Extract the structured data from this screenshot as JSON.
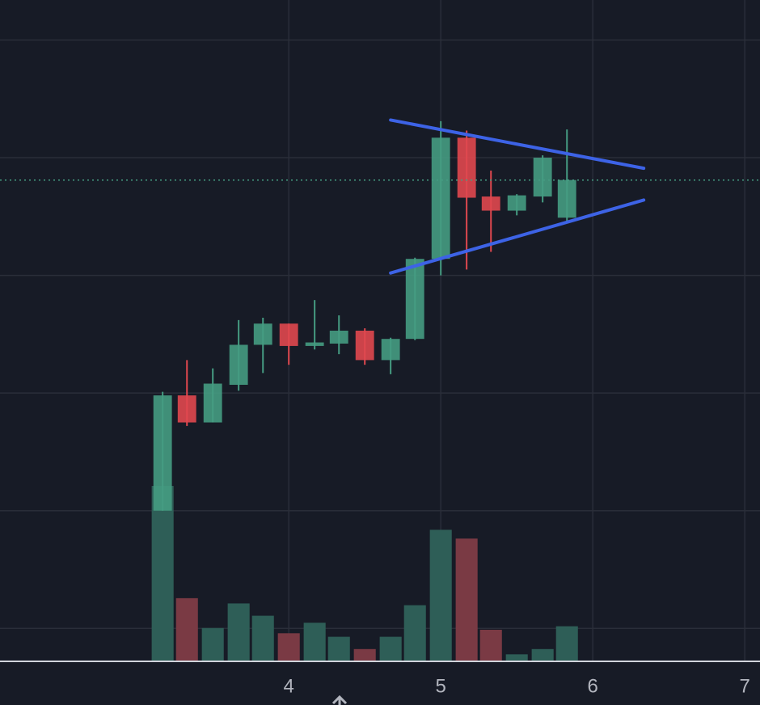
{
  "chart_data": {
    "type": "candlestick",
    "x": [
      3.17,
      3.33,
      3.5,
      3.67,
      3.83,
      4,
      4.17,
      4.33,
      4.5,
      4.67,
      4.83,
      5,
      5.17,
      5.33,
      5.5,
      5.67,
      5.83
    ],
    "open": [
      1.0,
      1.98,
      1.75,
      2.07,
      2.41,
      2.59,
      2.4,
      2.42,
      2.53,
      2.28,
      2.46,
      3.14,
      4.17,
      3.67,
      3.55,
      3.67,
      3.49
    ],
    "high": [
      2.01,
      2.28,
      2.21,
      2.62,
      2.64,
      2.59,
      2.79,
      2.66,
      2.55,
      2.47,
      3.15,
      4.31,
      4.23,
      3.89,
      3.69,
      4.02,
      4.24
    ],
    "low": [
      1.0,
      1.72,
      1.75,
      2.02,
      2.17,
      2.24,
      2.37,
      2.33,
      2.24,
      2.16,
      2.45,
      3.0,
      3.05,
      3.2,
      3.51,
      3.62,
      3.45
    ],
    "close": [
      1.98,
      1.75,
      2.08,
      2.41,
      2.59,
      2.4,
      2.43,
      2.53,
      2.28,
      2.46,
      3.14,
      4.17,
      3.66,
      3.55,
      3.68,
      4.0,
      3.81
    ],
    "volume": [
      100,
      36,
      19,
      33,
      26,
      16,
      22,
      14,
      7,
      14,
      32,
      75,
      70,
      18,
      4,
      7,
      20
    ],
    "up_color": "#459c82",
    "down_color": "#e0484f",
    "up_volume_color": "#2e5e57",
    "down_volume_color": "#7a3a44",
    "xlim": [
      2.1,
      7.1
    ],
    "xticks": [
      4,
      5,
      6,
      7
    ],
    "ylim": [
      -0.28,
      5.34
    ],
    "grid_y": [
      0,
      1,
      2,
      3,
      4,
      5
    ],
    "volume_lim": [
      0,
      377
    ],
    "last_price": 3.81,
    "lines": [
      {
        "color": "#3d63e6",
        "x": [
          4.67,
          6.335
        ],
        "y": [
          4.32,
          3.91
        ]
      },
      {
        "color": "#3d63e6",
        "x": [
          4.67,
          6.335
        ],
        "y": [
          3.02,
          3.64
        ]
      }
    ],
    "grid": true
  }
}
